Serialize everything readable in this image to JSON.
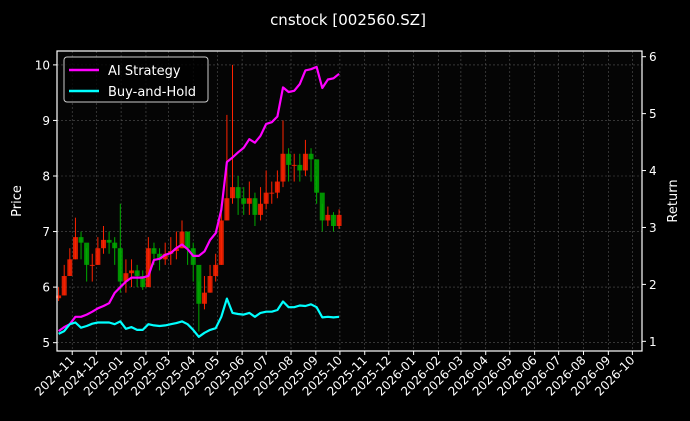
{
  "chart_data": {
    "type": "line",
    "title": "cnstock [002560.SZ]",
    "ylabel_left": "Price",
    "ylabel_right": "Return",
    "xlim": [
      "2024-10-13",
      "2026-10-13"
    ],
    "ylim_left": [
      4.85,
      10.25
    ],
    "ylim_right": [
      0.83,
      6.1
    ],
    "yticks_left": [
      5,
      6,
      7,
      8,
      9,
      10
    ],
    "yticks_right": [
      1,
      2,
      3,
      4,
      5,
      6
    ],
    "xticks": [
      "2024-11",
      "2024-12",
      "2025-01",
      "2025-02",
      "2025-03",
      "2025-04",
      "2025-05",
      "2025-06",
      "2025-07",
      "2025-08",
      "2025-09",
      "2025-10",
      "2025-11",
      "2025-12",
      "2026-01",
      "2026-02",
      "2026-03",
      "2026-04",
      "2026-05",
      "2026-06",
      "2026-07",
      "2026-08",
      "2026-09",
      "2026-10"
    ],
    "grid": true,
    "legend_position": "top-left",
    "sampling": {
      "start_date": "2024-10-15",
      "step_days": 7
    },
    "candles": {
      "up_color": "#ff2200",
      "down_color": "#00aa00",
      "close": [
        5.85,
        6.2,
        6.5,
        6.9,
        6.8,
        6.4,
        6.4,
        6.7,
        6.85,
        6.8,
        6.7,
        6.1,
        6.25,
        6.3,
        6.2,
        6.0,
        6.7,
        6.6,
        6.5,
        6.6,
        6.65,
        6.7,
        7.0,
        6.7,
        6.4,
        5.7,
        5.9,
        6.2,
        6.4,
        7.2,
        7.6,
        7.8,
        7.6,
        7.5,
        7.6,
        7.3,
        7.5,
        7.7,
        7.7,
        7.9,
        8.4,
        8.2,
        8.2,
        8.1,
        8.4,
        8.3,
        7.7,
        7.2,
        7.3,
        7.1,
        7.3
      ],
      "high": [
        6.0,
        6.4,
        6.7,
        7.25,
        7.0,
        6.7,
        6.6,
        6.9,
        7.1,
        7.0,
        6.9,
        7.5,
        6.5,
        6.5,
        6.4,
        6.3,
        6.9,
        6.8,
        6.7,
        6.8,
        6.9,
        7.0,
        7.2,
        7.0,
        6.8,
        6.1,
        6.2,
        6.4,
        6.6,
        7.5,
        9.1,
        10.0,
        8.0,
        7.8,
        7.9,
        7.7,
        7.8,
        8.1,
        7.9,
        8.1,
        9.0,
        8.5,
        8.4,
        8.4,
        8.65,
        8.5,
        8.0,
        7.5,
        7.45,
        7.35,
        7.4
      ],
      "low": [
        5.75,
        5.85,
        6.2,
        6.5,
        6.5,
        6.1,
        6.1,
        6.4,
        6.6,
        6.6,
        6.4,
        5.9,
        5.9,
        6.0,
        6.0,
        5.95,
        6.0,
        6.4,
        6.3,
        6.4,
        6.4,
        6.5,
        6.7,
        6.4,
        6.1,
        5.2,
        5.6,
        5.9,
        6.1,
        6.4,
        7.2,
        7.5,
        7.3,
        7.3,
        7.3,
        7.1,
        7.2,
        7.4,
        7.5,
        7.6,
        7.8,
        7.9,
        7.9,
        7.9,
        8.0,
        7.9,
        7.5,
        7.0,
        7.1,
        7.0,
        7.05
      ]
    },
    "series": [
      {
        "name": "AI Strategy",
        "color": "#ff00ff",
        "axis": "right",
        "values": [
          1.18,
          1.25,
          1.3,
          1.43,
          1.43,
          1.47,
          1.52,
          1.58,
          1.62,
          1.67,
          1.85,
          1.95,
          2.05,
          2.12,
          2.12,
          2.12,
          2.15,
          2.43,
          2.45,
          2.52,
          2.55,
          2.64,
          2.7,
          2.62,
          2.5,
          2.5,
          2.58,
          2.78,
          2.9,
          3.31,
          4.15,
          4.23,
          4.32,
          4.4,
          4.55,
          4.49,
          4.61,
          4.82,
          4.85,
          4.95,
          5.46,
          5.38,
          5.4,
          5.52,
          5.76,
          5.78,
          5.82,
          5.45,
          5.6,
          5.62,
          5.7
        ]
      },
      {
        "name": "Buy-and-Hold",
        "color": "#00ffff",
        "axis": "right",
        "values": [
          1.13,
          1.18,
          1.3,
          1.33,
          1.24,
          1.27,
          1.31,
          1.33,
          1.33,
          1.33,
          1.3,
          1.35,
          1.22,
          1.25,
          1.2,
          1.2,
          1.3,
          1.28,
          1.27,
          1.28,
          1.3,
          1.32,
          1.35,
          1.3,
          1.2,
          1.08,
          1.15,
          1.2,
          1.23,
          1.43,
          1.75,
          1.5,
          1.48,
          1.47,
          1.5,
          1.43,
          1.5,
          1.52,
          1.52,
          1.55,
          1.7,
          1.6,
          1.6,
          1.63,
          1.62,
          1.65,
          1.6,
          1.42,
          1.43,
          1.42,
          1.43
        ]
      }
    ]
  }
}
